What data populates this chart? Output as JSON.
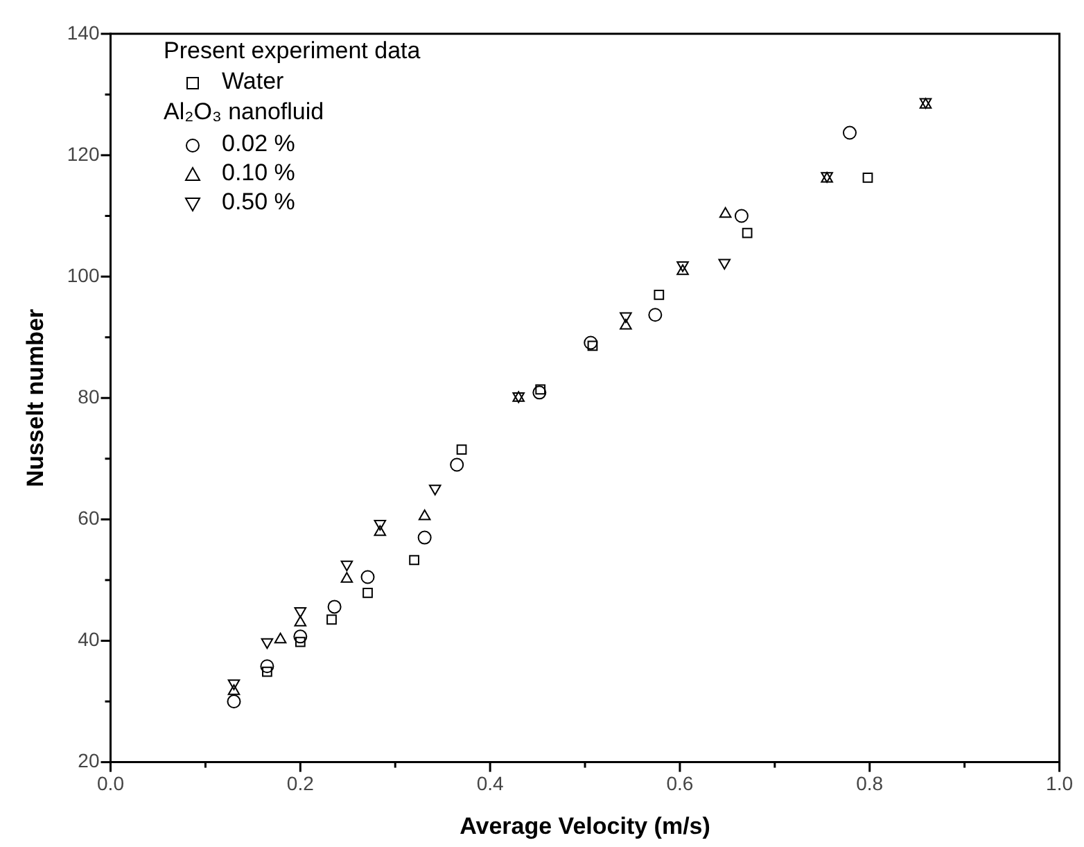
{
  "chart_data": {
    "type": "scatter",
    "xlabel": "Average Velocity (m/s)",
    "ylabel": "Nusselt number",
    "legend_title": "Present experiment data",
    "annotations": [
      "Al₂O₃ nanofluid"
    ],
    "xlim": [
      0,
      1.0
    ],
    "ylim": [
      20,
      140
    ],
    "xticks": [
      {
        "value": 0,
        "label": "0.0"
      },
      {
        "value": 0.1,
        "label": null
      },
      {
        "value": 0.2,
        "label": "0.2"
      },
      {
        "value": 0.3,
        "label": null
      },
      {
        "value": 0.4,
        "label": "0.4"
      },
      {
        "value": 0.5,
        "label": null
      },
      {
        "value": 0.6,
        "label": "0.6"
      },
      {
        "value": 0.7,
        "label": null
      },
      {
        "value": 0.8,
        "label": "0.8"
      },
      {
        "value": 0.9,
        "label": null
      },
      {
        "value": 1.0,
        "label": "1.0"
      }
    ],
    "yticks": [
      20,
      {
        "value": 30,
        "label": null
      },
      40,
      {
        "value": 50,
        "label": null
      },
      60,
      {
        "value": 70,
        "label": null
      },
      80,
      {
        "value": 90,
        "label": null
      },
      100,
      {
        "value": 110,
        "label": null
      },
      120,
      {
        "value": 130,
        "label": null
      },
      140
    ],
    "grid": false,
    "legend": "top left",
    "series": [
      {
        "name": "Water",
        "color": "#000000",
        "marker": "square",
        "x": [
          0.165,
          0.2,
          0.233,
          0.271,
          0.32,
          0.37,
          0.453,
          0.508,
          0.578,
          0.671,
          0.798
        ],
        "values": [
          34.9,
          39.8,
          43.5,
          47.9,
          53.3,
          71.5,
          81.4,
          88.6,
          97,
          107.2,
          116.3
        ]
      },
      {
        "name": "0.02 %",
        "color": "#000000",
        "marker": "circle",
        "x": [
          0.13,
          0.165,
          0.2,
          0.236,
          0.271,
          0.331,
          0.365,
          0.452,
          0.506,
          0.574,
          0.665,
          0.779
        ],
        "values": [
          30,
          35.8,
          40.7,
          45.6,
          50.5,
          57,
          69,
          80.9,
          89.1,
          93.7,
          110,
          123.7
        ]
      },
      {
        "name": "0.10 %",
        "color": "#000000",
        "marker": "triangle",
        "x": [
          0.13,
          0.179,
          0.2,
          0.249,
          0.284,
          0.331,
          0.43,
          0.543,
          0.603,
          0.648,
          0.755,
          0.859
        ],
        "values": [
          31.7,
          40.2,
          43,
          50.2,
          57.9,
          60.5,
          80,
          91.9,
          100.9,
          110.3,
          116.1,
          128.3
        ]
      },
      {
        "name": "0.50 %",
        "color": "#000000",
        "marker": "triangle-down",
        "x": [
          0.13,
          0.165,
          0.2,
          0.249,
          0.284,
          0.342,
          0.43,
          0.543,
          0.603,
          0.647,
          0.755,
          0.859
        ],
        "values": [
          33,
          39.8,
          44.9,
          52.6,
          59.3,
          65.1,
          80.3,
          93.5,
          101.9,
          102.3,
          116.6,
          128.8
        ]
      }
    ]
  }
}
